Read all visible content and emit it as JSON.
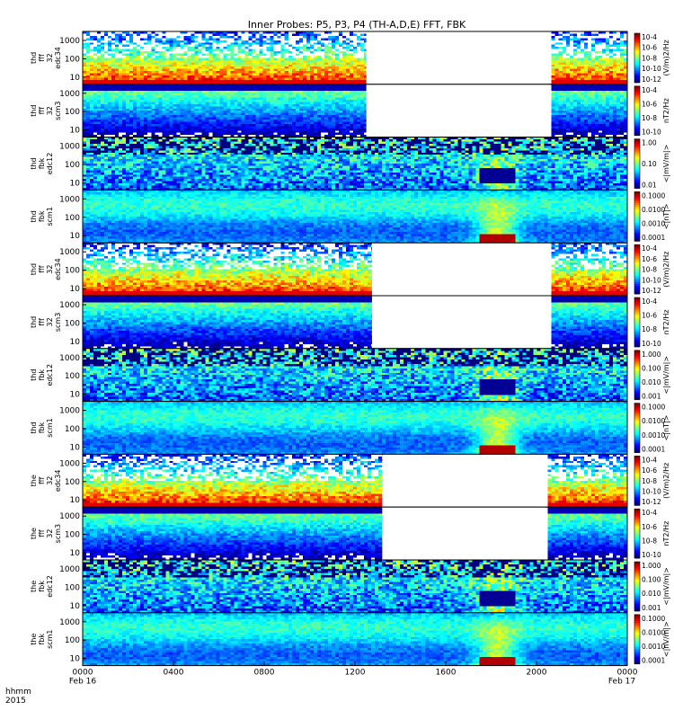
{
  "title": "Inner Probes: P5, P3, P4 (TH-A,D,E) FFT, FBK",
  "chart_data": {
    "type": "heatmap",
    "title": "Inner Probes: P5, P3, P4 (TH-A,D,E) FFT, FBK",
    "x_axis": {
      "hhmm_label": "hhmm",
      "year_label": "2015",
      "ticks": [
        "0000",
        "0400",
        "0800",
        "1200",
        "1600",
        "2000",
        "0000"
      ],
      "date_labels": [
        "Feb 16",
        "Feb 17"
      ],
      "range_hours": [
        0,
        24
      ]
    },
    "panels": [
      {
        "kind": "ffp",
        "labels": [
          "thd",
          "fff",
          "32",
          "edc34"
        ],
        "yticks": [
          "1000",
          "100",
          "10"
        ],
        "cbar_ticks": [
          "10-4",
          "10-6",
          "10-8",
          "10-10",
          "10-12"
        ],
        "cbar_label": "(V/m)2/Hz",
        "gaps": [
          [
            12.5,
            20.6
          ]
        ],
        "scale": "log"
      },
      {
        "kind": "ffp",
        "labels": [
          "thd",
          "fff",
          "32",
          "scm3"
        ],
        "yticks": [
          "1000",
          "100",
          "10"
        ],
        "cbar_ticks": [
          "10-4",
          "10-6",
          "10-8",
          "10-10"
        ],
        "cbar_label": "nT2/Hz",
        "gaps": [
          [
            12.5,
            20.6
          ]
        ],
        "scale": "log"
      },
      {
        "kind": "fbk",
        "labels": [
          "thd",
          "fbk",
          "edc12"
        ],
        "yticks": [
          "1000",
          "100",
          "10"
        ],
        "cbar_ticks": [
          "1.00",
          "0.10",
          "0.01"
        ],
        "cbar_label": "<|mV/m|>",
        "gaps": [],
        "scale": "log"
      },
      {
        "kind": "fbk",
        "labels": [
          "thd",
          "fbk",
          "scm1"
        ],
        "yticks": [
          "1000",
          "100",
          "10"
        ],
        "cbar_ticks": [
          "0.1000",
          "0.0100",
          "0.0010",
          "0.0001"
        ],
        "cbar_label": "<|nT|>",
        "gaps": [],
        "scale": "log"
      },
      {
        "kind": "ffp",
        "labels": [
          "thd",
          "fff",
          "32",
          "edc34"
        ],
        "yticks": [
          "1000",
          "100",
          "10"
        ],
        "cbar_ticks": [
          "10-4",
          "10-6",
          "10-8",
          "10-10",
          "10-12"
        ],
        "cbar_label": "(V/m)2/Hz",
        "gaps": [
          [
            12.75,
            20.6
          ]
        ],
        "scale": "log"
      },
      {
        "kind": "ffp",
        "labels": [
          "thd",
          "fff",
          "32",
          "scm3"
        ],
        "yticks": [
          "1000",
          "100",
          "10"
        ],
        "cbar_ticks": [
          "10-4",
          "10-6",
          "10-8",
          "10-10"
        ],
        "cbar_label": "nT2/Hz",
        "gaps": [
          [
            12.75,
            20.6
          ]
        ],
        "scale": "log"
      },
      {
        "kind": "fbk",
        "labels": [
          "thd",
          "fbk",
          "edc12"
        ],
        "yticks": [
          "1000",
          "100",
          "10"
        ],
        "cbar_ticks": [
          "1.000",
          "0.100",
          "0.010",
          "0.001"
        ],
        "cbar_label": "<|mV/m|>",
        "gaps": [],
        "scale": "log"
      },
      {
        "kind": "fbk",
        "labels": [
          "thd",
          "fbk",
          "scm1"
        ],
        "yticks": [
          "1000",
          "100",
          "10"
        ],
        "cbar_ticks": [
          "0.1000",
          "0.0100",
          "0.0010",
          "0.0001"
        ],
        "cbar_label": "<|nT|>",
        "gaps": [],
        "scale": "log"
      },
      {
        "kind": "ffp",
        "labels": [
          "the",
          "fff",
          "32",
          "edc34"
        ],
        "yticks": [
          "1000",
          "100",
          "10"
        ],
        "cbar_ticks": [
          "10-4",
          "10-6",
          "10-8",
          "10-10",
          "10-12"
        ],
        "cbar_label": "(V/m)2/Hz",
        "gaps": [
          [
            13.2,
            20.4
          ]
        ],
        "scale": "log"
      },
      {
        "kind": "ffp",
        "labels": [
          "the",
          "fff",
          "32",
          "scm3"
        ],
        "yticks": [
          "1000",
          "100",
          "10"
        ],
        "cbar_ticks": [
          "10-4",
          "10-6",
          "10-8",
          "10-10"
        ],
        "cbar_label": "nT2/Hz",
        "gaps": [
          [
            13.2,
            20.4
          ]
        ],
        "scale": "log"
      },
      {
        "kind": "fbk",
        "labels": [
          "the",
          "fbk",
          "edc12"
        ],
        "yticks": [
          "1000",
          "100",
          "10"
        ],
        "cbar_ticks": [
          "1.000",
          "0.100",
          "0.010",
          "0.001"
        ],
        "cbar_label": "<|mV/m|>",
        "gaps": [],
        "scale": "log"
      },
      {
        "kind": "fbk",
        "labels": [
          "the",
          "fbk",
          "scm1"
        ],
        "yticks": [
          "1000",
          "100",
          "10"
        ],
        "cbar_ticks": [
          "0.1000",
          "0.0100",
          "0.0010",
          "0.0001"
        ],
        "cbar_label": "<|nV/m|>",
        "gaps": [],
        "scale": "log"
      }
    ]
  }
}
